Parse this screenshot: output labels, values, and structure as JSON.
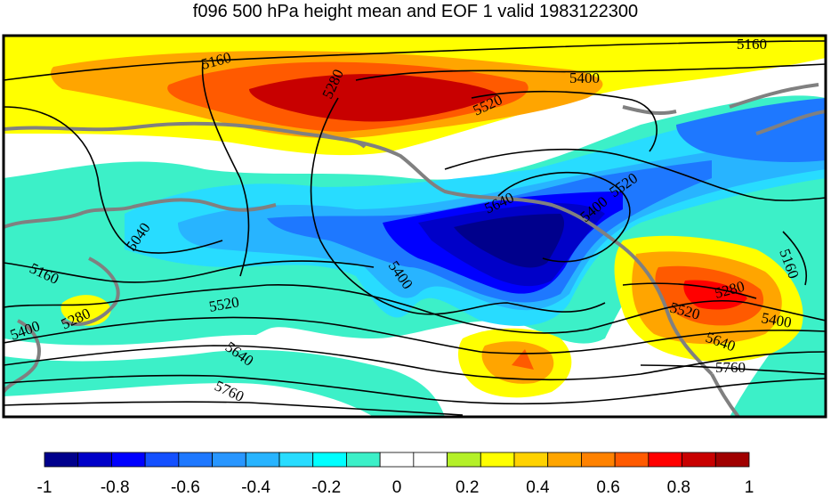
{
  "title": "f096 500 hPa height mean and EOF 1 valid 1983122300",
  "colorbar": {
    "colors": [
      "#00008c",
      "#0000c8",
      "#0000ff",
      "#1450ff",
      "#1e78ff",
      "#2896ff",
      "#28b4ff",
      "#28dcff",
      "#00ffff",
      "#3cf0c8",
      "#ffffff",
      "#ffffff",
      "#b4f028",
      "#ffff00",
      "#ffd200",
      "#ffa500",
      "#ff8200",
      "#ff5a00",
      "#ff0000",
      "#c80000",
      "#a00000"
    ],
    "tick_labels": [
      "-1",
      "-0.8",
      "-0.6",
      "-0.4",
      "-0.2",
      "0",
      "0.2",
      "0.4",
      "0.6",
      "0.8",
      "1"
    ]
  },
  "contour_labels": [
    {
      "text": "5160",
      "id": "c1"
    },
    {
      "text": "5160",
      "id": "c2"
    },
    {
      "text": "5280",
      "id": "c3"
    },
    {
      "text": "5400",
      "id": "c4"
    },
    {
      "text": "5520",
      "id": "c5"
    },
    {
      "text": "5640",
      "id": "c6"
    },
    {
      "text": "5520",
      "id": "c7"
    },
    {
      "text": "5400",
      "id": "c8"
    },
    {
      "text": "5040",
      "id": "c9"
    },
    {
      "text": "5400",
      "id": "c10"
    },
    {
      "text": "5160",
      "id": "c11"
    },
    {
      "text": "5280",
      "id": "c12"
    },
    {
      "text": "5400",
      "id": "c13"
    },
    {
      "text": "5520",
      "id": "c14"
    },
    {
      "text": "5640",
      "id": "c15"
    },
    {
      "text": "5760",
      "id": "c16"
    },
    {
      "text": "5160",
      "id": "c17"
    },
    {
      "text": "5280",
      "id": "c18"
    },
    {
      "text": "5400",
      "id": "c19"
    },
    {
      "text": "5520",
      "id": "c20"
    },
    {
      "text": "5640",
      "id": "c21"
    },
    {
      "text": "5760",
      "id": "c22"
    }
  ]
}
